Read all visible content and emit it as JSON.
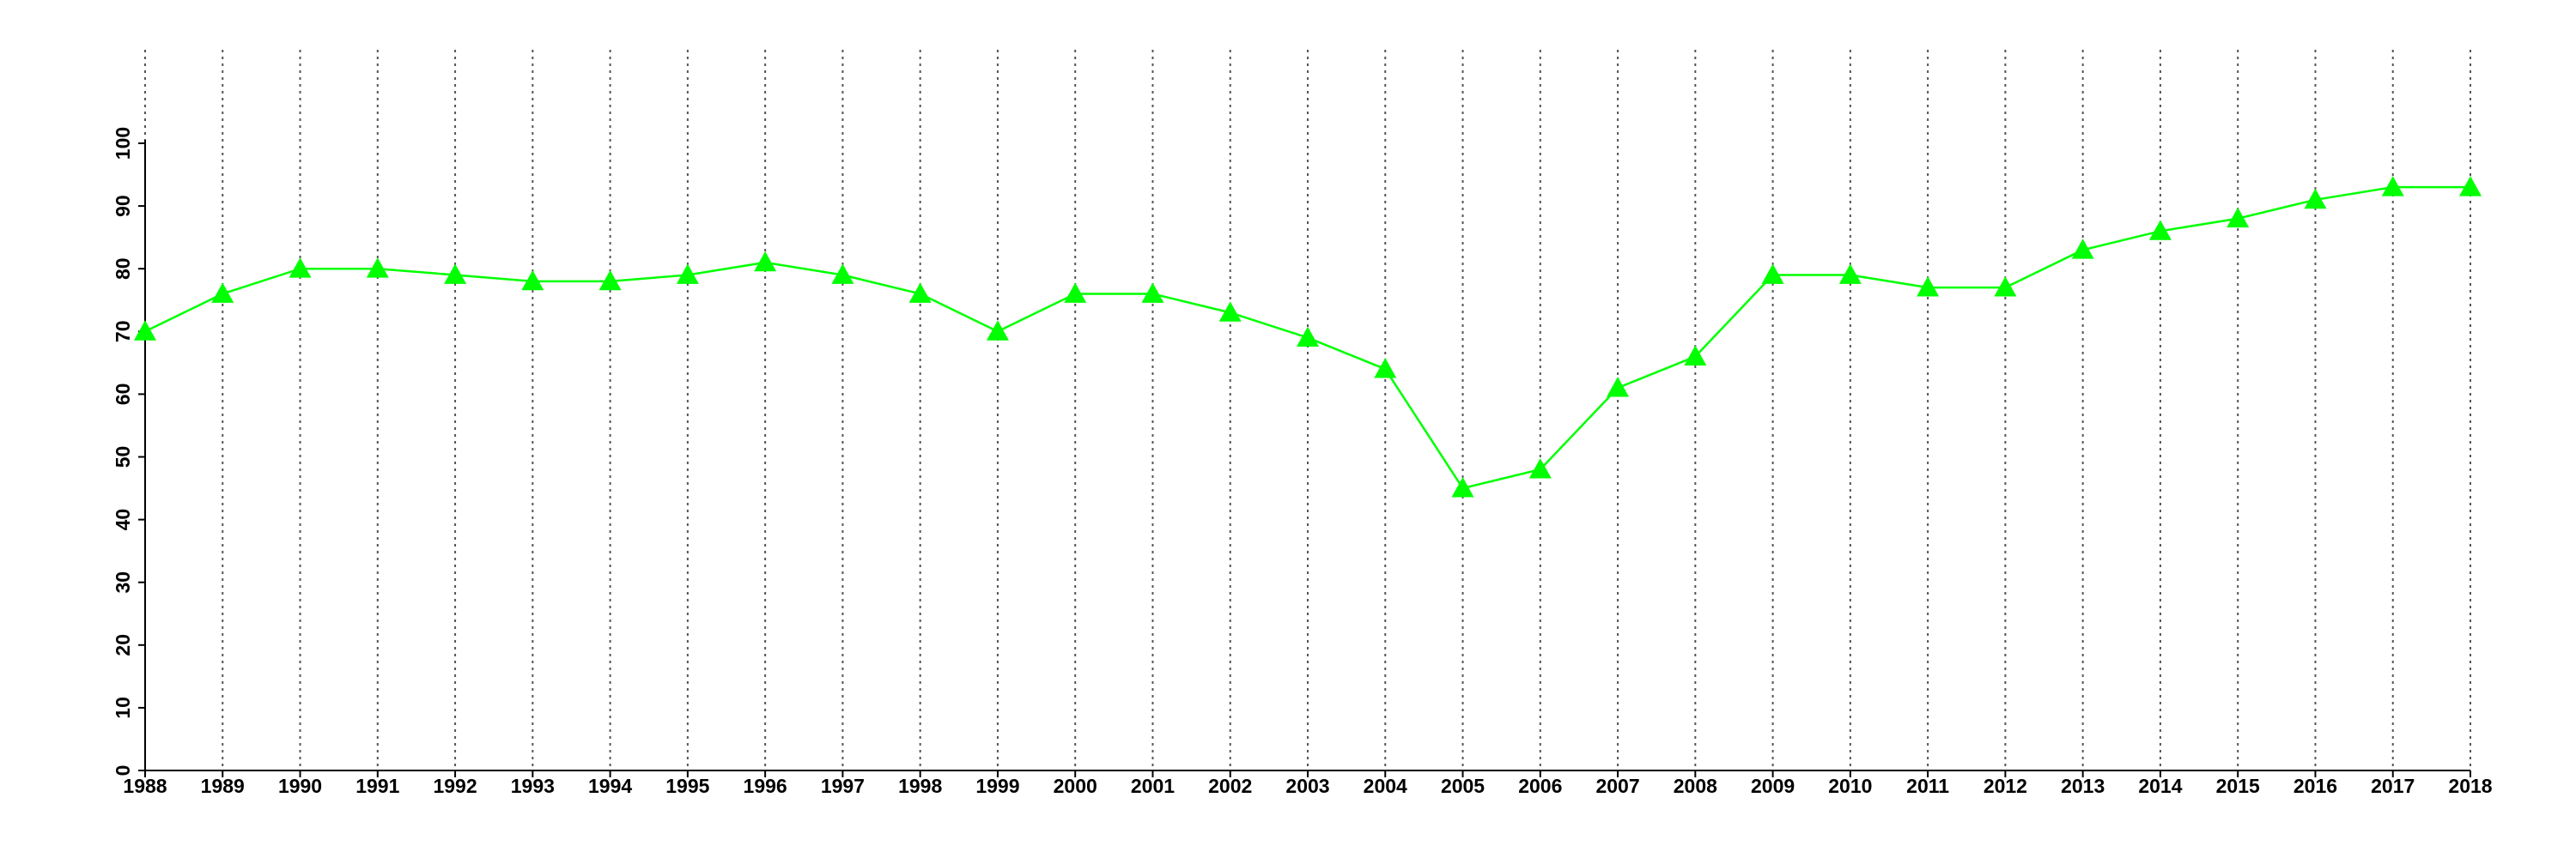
{
  "chart_data": {
    "type": "line",
    "x": [
      1988,
      1989,
      1990,
      1991,
      1992,
      1993,
      1994,
      1995,
      1996,
      1997,
      1998,
      1999,
      2000,
      2001,
      2002,
      2003,
      2004,
      2005,
      2006,
      2007,
      2008,
      2009,
      2010,
      2011,
      2012,
      2013,
      2014,
      2015,
      2016,
      2017,
      2018
    ],
    "series": [
      {
        "color": "#00ff00",
        "values": [
          70,
          76,
          80,
          80,
          79,
          78,
          78,
          79,
          81,
          79,
          76,
          70,
          76,
          76,
          73,
          69,
          64,
          45,
          48,
          61,
          66,
          79,
          79,
          77,
          77,
          83,
          86,
          88,
          91,
          93,
          93
        ]
      }
    ],
    "xlim": [
      1988,
      2018
    ],
    "xticks": [
      1988,
      1989,
      1990,
      1991,
      1992,
      1993,
      1994,
      1995,
      1996,
      1997,
      1998,
      1999,
      2000,
      2001,
      2002,
      2003,
      2004,
      2005,
      2006,
      2007,
      2008,
      2009,
      2010,
      2011,
      2012,
      2013,
      2014,
      2015,
      2016,
      2017,
      2018
    ],
    "ylim": [
      0,
      100
    ],
    "yticks": [
      0,
      10,
      20,
      30,
      40,
      50,
      60,
      70,
      80,
      90,
      100
    ],
    "grid": "x",
    "marker": "triangle"
  }
}
